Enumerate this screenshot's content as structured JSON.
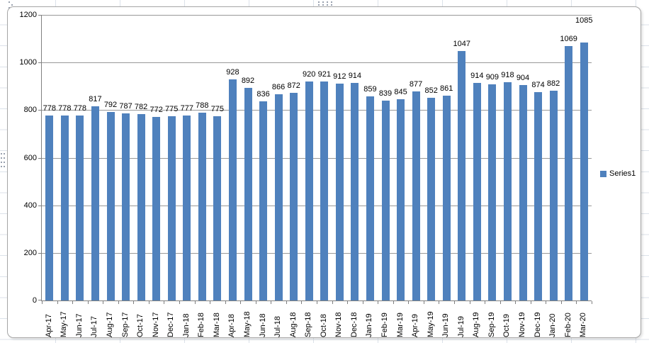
{
  "chart_data": {
    "type": "bar",
    "title": "",
    "xlabel": "",
    "ylabel": "",
    "categories": [
      "Apr-17",
      "May-17",
      "Jun-17",
      "Jul-17",
      "Aug-17",
      "Sep-17",
      "Oct-17",
      "Nov-17",
      "Dec-17",
      "Jan-18",
      "Feb-18",
      "Mar-18",
      "Apr-18",
      "May-18",
      "Jun-18",
      "Jul-18",
      "Aug-18",
      "Sep-18",
      "Oct-18",
      "Nov-18",
      "Dec-18",
      "Jan-19",
      "Feb-19",
      "Mar-19",
      "Apr-19",
      "May-19",
      "Jun-19",
      "Jul-19",
      "Aug-19",
      "Sep-19",
      "Oct-19",
      "Nov-19",
      "Dec-19",
      "Jan-20",
      "Feb-20",
      "Mar-20"
    ],
    "series": [
      {
        "name": "Series1",
        "values": [
          778,
          778,
          778,
          817,
          792,
          787,
          782,
          772,
          775,
          777,
          788,
          775,
          928,
          892,
          836,
          866,
          872,
          920,
          921,
          912,
          914,
          859,
          839,
          845,
          877,
          852,
          861,
          1047,
          914,
          909,
          918,
          904,
          874,
          882,
          1069,
          1085
        ]
      }
    ],
    "ylim": [
      0,
      1200
    ],
    "yticks": [
      0,
      200,
      400,
      600,
      800,
      1000,
      1200
    ],
    "grid": true,
    "legend_position": "right",
    "data_labels": true,
    "colors": {
      "bar": "#4F81BD",
      "gridline": "#999999",
      "axis": "#808080",
      "text": "#000000",
      "chart_border": "#A6A6A6",
      "worksheet_gridline": "#DCE2EA"
    }
  }
}
